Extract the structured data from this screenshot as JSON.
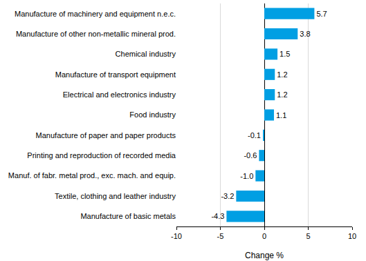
{
  "chart_data": {
    "type": "bar",
    "orientation": "horizontal",
    "categories": [
      "Manufacture of machinery and equipment n.e.c.",
      "Manufacture of other non-metallic mineral prod.",
      "Chemical industry",
      "Manufacture of transport equipment",
      "Electrical and electronics industry",
      "Food industry",
      "Manufacture of paper and paper products",
      "Printing and reproduction of recorded media",
      "Manuf. of fabr. metal prod., exc. mach. and equip.",
      "Textile, clothing and leather industry",
      "Manufacture of basic metals"
    ],
    "values": [
      5.7,
      3.8,
      1.5,
      1.2,
      1.2,
      1.1,
      -0.1,
      -0.6,
      -1.0,
      -3.2,
      -4.3
    ],
    "value_labels": [
      "5.7",
      "3.8",
      "1.5",
      "1.2",
      "1.2",
      "1.1",
      "-0.1",
      "-0.6",
      "-1.0",
      "-3.2",
      "-4.3"
    ],
    "x_label": "Change %",
    "color": "#009fe3",
    "xlim": [
      -10,
      10
    ],
    "xticks": [
      -10,
      -5,
      0,
      5,
      10
    ],
    "grid": true,
    "data_labels": true
  }
}
